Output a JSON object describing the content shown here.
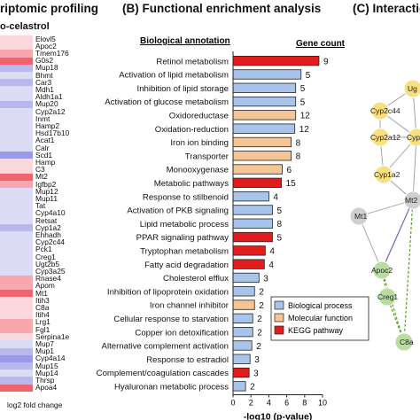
{
  "panels": {
    "a_title": "riptomic profiling",
    "a_subtitle": "o-celastrol",
    "b_title": "(B) Functional enrichment analysis",
    "c_title": "(C) Interactio"
  },
  "heatmap": {
    "colorbar_caption": "log2 fold change",
    "colors": {
      "up_strong": "#f0646e",
      "up_mid": "#f6a8ae",
      "up_light": "#fbd8dc",
      "down_light": "#dcdcf6",
      "down_mid": "#b8b8ee",
      "down_strong": "#9a9ae6"
    },
    "genes": [
      {
        "name": "Elovl5",
        "level": 0.1
      },
      {
        "name": "Apoc2",
        "level": 0.3
      },
      {
        "name": "Tmem176",
        "level": 0.5
      },
      {
        "name": "G0s2",
        "level": 0.7
      },
      {
        "name": "Mup18",
        "level": -0.4
      },
      {
        "name": "Bhmt",
        "level": -0.3
      },
      {
        "name": "Car3",
        "level": -0.4
      },
      {
        "name": "Mdh1",
        "level": -0.3
      },
      {
        "name": "Aldh1a1",
        "level": -0.3
      },
      {
        "name": "Mup20",
        "level": -0.4
      },
      {
        "name": "Cyp2a12",
        "level": -0.3
      },
      {
        "name": "Inmt",
        "level": -0.3
      },
      {
        "name": "Hamp2",
        "level": -0.2
      },
      {
        "name": "Hsd17b10",
        "level": -0.2
      },
      {
        "name": "Acat1",
        "level": -0.2
      },
      {
        "name": "Calr",
        "level": -0.3
      },
      {
        "name": "Scd1",
        "level": -0.8
      },
      {
        "name": "Hamp",
        "level": 0.2
      },
      {
        "name": "C3",
        "level": 0.3
      },
      {
        "name": "Mt2",
        "level": 0.7
      },
      {
        "name": "Igfbp2",
        "level": 0.5
      },
      {
        "name": "Mup12",
        "level": -0.3
      },
      {
        "name": "Mup11",
        "level": -0.3
      },
      {
        "name": "Tat",
        "level": -0.2
      },
      {
        "name": "Cyp4a10",
        "level": -0.3
      },
      {
        "name": "Retsat",
        "level": -0.3
      },
      {
        "name": "Cyp1a2",
        "level": -0.4
      },
      {
        "name": "Ehhadh",
        "level": -0.3
      },
      {
        "name": "Cyp2c44",
        "level": -0.3
      },
      {
        "name": "Pck1",
        "level": -0.2
      },
      {
        "name": "Creg1",
        "level": -0.3
      },
      {
        "name": "Ugt2b5",
        "level": -0.2
      },
      {
        "name": "Cyp3a25",
        "level": -0.3
      },
      {
        "name": "Rnase4",
        "level": 0.5
      },
      {
        "name": "Apom",
        "level": 0.4
      },
      {
        "name": "Mt1",
        "level": 0.8
      },
      {
        "name": "Itih3",
        "level": 0.3
      },
      {
        "name": "C8a",
        "level": 0.3
      },
      {
        "name": "Itih4",
        "level": 0.3
      },
      {
        "name": "Lrg1",
        "level": 0.6
      },
      {
        "name": "Fgl1",
        "level": 0.4
      },
      {
        "name": "Serpina1e",
        "level": 0.3
      },
      {
        "name": "Mup7",
        "level": -0.2
      },
      {
        "name": "Mup1",
        "level": -0.5
      },
      {
        "name": "Cyp4a14",
        "level": -0.7
      },
      {
        "name": "Mup15",
        "level": -0.4
      },
      {
        "name": "Mup14",
        "level": -0.3
      },
      {
        "name": "Thrsp",
        "level": -0.5
      },
      {
        "name": "Apoa4",
        "level": 0.9
      }
    ]
  },
  "chart_data": {
    "type": "bar",
    "orientation": "horizontal",
    "title": "",
    "category_header": "Biological annotation",
    "count_header": "Gene count",
    "xlabel": "-log10 (p-value)",
    "xlim": [
      0,
      10
    ],
    "xticks": [
      0,
      2,
      4,
      6,
      8,
      10
    ],
    "legend_position": "bottom-right",
    "groups": [
      {
        "name": "Biological process",
        "color": "#a9c4ea"
      },
      {
        "name": "Molecular function",
        "color": "#f6c596"
      },
      {
        "name": "KEGG pathway",
        "color": "#e01c1c"
      }
    ],
    "rows": [
      {
        "label": "Retinol metabolism",
        "value": 9.6,
        "count": 9,
        "group": "KEGG pathway"
      },
      {
        "label": "Activation of lipid metabolism",
        "value": 7.6,
        "count": 5,
        "group": "Biological process"
      },
      {
        "label": "Inhibition of lipid storage",
        "value": 7.0,
        "count": 5,
        "group": "Biological process"
      },
      {
        "label": "Activation of glucose metabolism",
        "value": 7.0,
        "count": 5,
        "group": "Biological process"
      },
      {
        "label": "Oxidoreductase",
        "value": 7.0,
        "count": 12,
        "group": "Molecular function"
      },
      {
        "label": "Oxidation-reduction",
        "value": 6.9,
        "count": 12,
        "group": "Biological process"
      },
      {
        "label": "Iron ion binding",
        "value": 6.5,
        "count": 8,
        "group": "Molecular function"
      },
      {
        "label": "Transporter",
        "value": 6.5,
        "count": 8,
        "group": "Molecular function"
      },
      {
        "label": "Monooxygenase",
        "value": 5.5,
        "count": 6,
        "group": "Molecular function"
      },
      {
        "label": "Metabolic pathways",
        "value": 5.4,
        "count": 15,
        "group": "KEGG pathway"
      },
      {
        "label": "Response to stilbenoid",
        "value": 4.0,
        "count": 4,
        "group": "Biological process"
      },
      {
        "label": "Activation of PKB signaling",
        "value": 4.4,
        "count": 5,
        "group": "Biological process"
      },
      {
        "label": "Lipid metabolic process",
        "value": 4.4,
        "count": 8,
        "group": "Biological process"
      },
      {
        "label": "PPAR signaling pathway",
        "value": 4.4,
        "count": 5,
        "group": "KEGG pathway"
      },
      {
        "label": "Tryptophan metabolism",
        "value": 3.6,
        "count": 4,
        "group": "KEGG pathway"
      },
      {
        "label": "Fatty acid degradation",
        "value": 3.5,
        "count": 4,
        "group": "KEGG pathway"
      },
      {
        "label": "Cholesterol efflux",
        "value": 2.9,
        "count": 3,
        "group": "Biological process"
      },
      {
        "label": "Inhibition of lipoprotein oxidation",
        "value": 2.4,
        "count": 2,
        "group": "Biological process"
      },
      {
        "label": "Iron channel inhibitor",
        "value": 2.4,
        "count": 2,
        "group": "Molecular function"
      },
      {
        "label": "Cellular response to starvation",
        "value": 2.2,
        "count": 2,
        "group": "Biological process"
      },
      {
        "label": "Copper ion detoxification",
        "value": 2.2,
        "count": 2,
        "group": "Biological process"
      },
      {
        "label": "Alternative complement activation",
        "value": 2.1,
        "count": 2,
        "group": "Biological process"
      },
      {
        "label": "Response to estradiol",
        "value": 1.9,
        "count": 3,
        "group": "Biological process"
      },
      {
        "label": "Complement/coagulation cascades",
        "value": 1.8,
        "count": 3,
        "group": "KEGG pathway"
      },
      {
        "label": "Hyaluronan metabolic process",
        "value": 1.4,
        "count": 2,
        "group": "Biological process"
      }
    ]
  },
  "network": {
    "nodes": [
      {
        "label": "Ug",
        "color": "yellow"
      },
      {
        "label": "Cyp2c44",
        "color": "yellow"
      },
      {
        "label": "Cyp2a12",
        "color": "yellow"
      },
      {
        "label": "Cyp",
        "color": "yellow"
      },
      {
        "label": "Cyp1a2",
        "color": "yellow"
      },
      {
        "label": "Mt1",
        "color": "gray"
      },
      {
        "label": "Mt2",
        "color": "gray"
      },
      {
        "label": "Apoc2",
        "color": "green"
      },
      {
        "label": "Creg1",
        "color": "green"
      },
      {
        "label": "C8a",
        "color": "green"
      }
    ],
    "colors": {
      "yellow": "#f8df80",
      "gray": "#cfcfcf",
      "green": "#b9dca0",
      "edge_gray": "#9c9c9c",
      "edge_green": "#5aa02c",
      "edge_purple": "#7d5fb4"
    }
  }
}
